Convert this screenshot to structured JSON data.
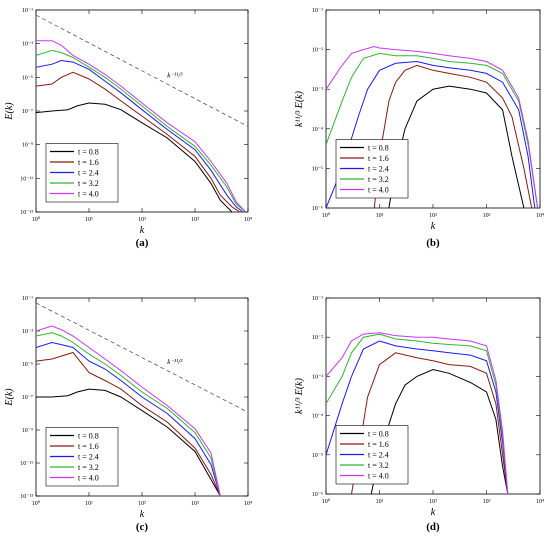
{
  "chart_data": [
    {
      "type": "line",
      "panel": "(a)",
      "xlabel": "k",
      "ylabel": "E(k)",
      "xscale": "log",
      "yscale": "log",
      "xlim": [
        1,
        10000
      ],
      "ylim": [
        1e-13,
        0.1
      ],
      "xticks": [
        {
          "v": 1,
          "label": "10⁰"
        },
        {
          "v": 10,
          "label": "10¹"
        },
        {
          "v": 100,
          "label": "10²"
        },
        {
          "v": 1000,
          "label": "10³"
        },
        {
          "v": 10000,
          "label": "10⁴"
        }
      ],
      "yticks": [
        {
          "v": 0.1,
          "label": "10⁻¹"
        },
        {
          "v": 0.001,
          "label": "10⁻³"
        },
        {
          "v": 1e-05,
          "label": "10⁻⁵"
        },
        {
          "v": 1e-07,
          "label": "10⁻⁷"
        },
        {
          "v": 1e-09,
          "label": "10⁻⁹"
        },
        {
          "v": 1e-11,
          "label": "10⁻¹¹"
        },
        {
          "v": 1e-13,
          "label": "10⁻¹³"
        }
      ],
      "legend_position": "lower-left",
      "annotation": {
        "text": "k⁻¹¹/³",
        "x": 300,
        "y": 1e-05
      },
      "reference_line": {
        "style": "dashed",
        "x": [
          1,
          10000
        ],
        "y": [
          0.05,
          1.2e-08
        ]
      },
      "series": [
        {
          "name": "t = 0.8",
          "color": "#000000",
          "x": [
            1,
            2,
            4,
            6,
            10,
            20,
            40,
            100,
            300,
            1000,
            2000,
            3000,
            5000
          ],
          "y": [
            8e-08,
            1e-07,
            1.2e-07,
            2e-07,
            3e-07,
            2.5e-07,
            1.2e-07,
            2e-08,
            2.5e-09,
            1e-10,
            5e-12,
            5e-13,
            1e-13
          ]
        },
        {
          "name": "t = 1.6",
          "color": "#8b1a0a",
          "x": [
            1,
            2,
            3,
            5,
            10,
            20,
            40,
            100,
            300,
            1000,
            2000,
            3000,
            5000,
            7000
          ],
          "y": [
            3e-06,
            4e-06,
            1e-05,
            2e-05,
            8e-06,
            2e-06,
            4e-07,
            5e-08,
            4e-09,
            2e-10,
            1e-11,
            1e-12,
            2e-13,
            1e-13
          ]
        },
        {
          "name": "t = 2.4",
          "color": "#1a1aff",
          "x": [
            1,
            2,
            3,
            5,
            10,
            20,
            40,
            100,
            300,
            1000,
            2000,
            4000,
            6000,
            8000
          ],
          "y": [
            4e-05,
            6e-05,
            0.0001,
            8e-05,
            3e-05,
            6e-06,
            1.2e-06,
            1.2e-07,
            8e-09,
            5e-10,
            3e-11,
            1e-12,
            2e-13,
            1e-13
          ]
        },
        {
          "name": "t = 3.2",
          "color": "#2db82d",
          "x": [
            1,
            2,
            3,
            5,
            10,
            20,
            40,
            100,
            300,
            1000,
            2000,
            4000,
            6000,
            9000
          ],
          "y": [
            0.0002,
            0.0004,
            0.0003,
            0.00015,
            4e-05,
            1e-05,
            2e-06,
            2e-07,
            1.2e-08,
            8e-10,
            6e-11,
            3e-12,
            3e-13,
            1e-13
          ]
        },
        {
          "name": "t = 4.0",
          "color": "#cc33ff",
          "x": [
            1,
            2,
            3,
            5,
            10,
            20,
            40,
            100,
            300,
            1000,
            2000,
            4000,
            6000,
            9000
          ],
          "y": [
            0.0015,
            0.0015,
            0.0008,
            0.0002,
            6e-05,
            1.5e-05,
            3e-06,
            3e-07,
            2e-08,
            1.5e-09,
            1e-10,
            5e-12,
            4e-13,
            1e-13
          ]
        }
      ]
    },
    {
      "type": "line",
      "panel": "(b)",
      "xlabel": "k",
      "ylabel": "k¹¹/³ E(k)",
      "xscale": "log",
      "yscale": "log",
      "xlim": [
        1,
        10000
      ],
      "ylim": [
        1e-06,
        0.1
      ],
      "xticks": [
        {
          "v": 1,
          "label": "10⁰"
        },
        {
          "v": 10,
          "label": "10¹"
        },
        {
          "v": 100,
          "label": "10²"
        },
        {
          "v": 1000,
          "label": "10³"
        },
        {
          "v": 10000,
          "label": "10⁴"
        }
      ],
      "yticks": [
        {
          "v": 0.1,
          "label": "10⁻¹"
        },
        {
          "v": 0.01,
          "label": "10⁻²"
        },
        {
          "v": 0.001,
          "label": "10⁻³"
        },
        {
          "v": 0.0001,
          "label": "10⁻⁴"
        },
        {
          "v": 1e-05,
          "label": "10⁻⁵"
        },
        {
          "v": 1e-06,
          "label": "10⁻⁶"
        }
      ],
      "legend_position": "lower-left",
      "series": [
        {
          "name": "t = 0.8",
          "color": "#000000",
          "x": [
            15,
            20,
            30,
            50,
            100,
            200,
            500,
            1000,
            2000,
            3000,
            5000
          ],
          "y": [
            1e-06,
            1e-05,
            0.0001,
            0.0005,
            0.001,
            0.0012,
            0.001,
            0.0008,
            0.0003,
            2e-05,
            1e-06
          ]
        },
        {
          "name": "t = 1.6",
          "color": "#8b1a0a",
          "x": [
            8,
            10,
            15,
            20,
            30,
            50,
            100,
            200,
            500,
            1000,
            2000,
            3000,
            5000,
            7000
          ],
          "y": [
            1e-06,
            2e-05,
            0.0005,
            0.0015,
            0.003,
            0.004,
            0.003,
            0.0025,
            0.002,
            0.0015,
            0.0006,
            0.0002,
            1e-05,
            1e-06
          ]
        },
        {
          "name": "t = 2.4",
          "color": "#1a1aff",
          "x": [
            1,
            2,
            4,
            6,
            10,
            20,
            50,
            100,
            200,
            500,
            1000,
            2000,
            4000,
            6000,
            8000
          ],
          "y": [
            1e-06,
            1e-05,
            0.0002,
            0.001,
            0.003,
            0.0045,
            0.005,
            0.004,
            0.0035,
            0.003,
            0.0025,
            0.0015,
            0.0003,
            2e-05,
            1e-06
          ]
        },
        {
          "name": "t = 3.2",
          "color": "#2db82d",
          "x": [
            1,
            2,
            3,
            5,
            10,
            20,
            50,
            100,
            200,
            500,
            1000,
            2000,
            4000,
            6000,
            9000
          ],
          "y": [
            4e-05,
            0.0005,
            0.002,
            0.006,
            0.008,
            0.007,
            0.007,
            0.006,
            0.005,
            0.0045,
            0.004,
            0.0025,
            0.0005,
            4e-05,
            1e-06
          ]
        },
        {
          "name": "t = 4.0",
          "color": "#cc33ff",
          "x": [
            1,
            2,
            3,
            5,
            8,
            10,
            20,
            50,
            100,
            200,
            500,
            1000,
            2000,
            4000,
            6000,
            9000
          ],
          "y": [
            0.001,
            0.004,
            0.008,
            0.01,
            0.012,
            0.011,
            0.01,
            0.009,
            0.008,
            0.007,
            0.006,
            0.005,
            0.003,
            0.0006,
            5e-05,
            1e-06
          ]
        }
      ]
    },
    {
      "type": "line",
      "panel": "(c)",
      "xlabel": "k",
      "ylabel": "E(k)",
      "xscale": "log",
      "yscale": "log",
      "xlim": [
        1,
        10000
      ],
      "ylim": [
        1e-13,
        0.1
      ],
      "xticks": [
        {
          "v": 1,
          "label": "10⁰"
        },
        {
          "v": 10,
          "label": "10¹"
        },
        {
          "v": 100,
          "label": "10²"
        },
        {
          "v": 1000,
          "label": "10³"
        },
        {
          "v": 10000,
          "label": "10⁴"
        }
      ],
      "yticks": [
        {
          "v": 0.1,
          "label": "10⁻¹"
        },
        {
          "v": 0.001,
          "label": "10⁻³"
        },
        {
          "v": 1e-05,
          "label": "10⁻⁵"
        },
        {
          "v": 1e-07,
          "label": "10⁻⁷"
        },
        {
          "v": 1e-09,
          "label": "10⁻⁹"
        },
        {
          "v": 1e-11,
          "label": "10⁻¹¹"
        },
        {
          "v": 1e-13,
          "label": "10⁻¹³"
        }
      ],
      "legend_position": "lower-left",
      "annotation": {
        "text": "k⁻¹¹/³",
        "x": 300,
        "y": 1e-05
      },
      "reference_line": {
        "style": "dashed",
        "x": [
          1,
          10000
        ],
        "y": [
          0.05,
          1.2e-08
        ]
      },
      "series": [
        {
          "name": "t = 0.8",
          "color": "#000000",
          "x": [
            1,
            2,
            4,
            6,
            10,
            20,
            40,
            100,
            300,
            1000,
            2000,
            3000
          ],
          "y": [
            1e-07,
            1e-07,
            1.2e-07,
            2e-07,
            3e-07,
            2.5e-07,
            1e-07,
            1.5e-08,
            1.5e-09,
            5e-11,
            1e-12,
            1e-13
          ]
        },
        {
          "name": "t = 1.6",
          "color": "#8b1a0a",
          "x": [
            1,
            2,
            3,
            5,
            10,
            20,
            40,
            100,
            300,
            1000,
            2000,
            3000
          ],
          "y": [
            1.5e-05,
            2e-05,
            3e-05,
            5e-05,
            3e-06,
            1e-06,
            3e-07,
            3e-08,
            3e-09,
            8e-11,
            2e-12,
            1e-13
          ]
        },
        {
          "name": "t = 2.4",
          "color": "#1a1aff",
          "x": [
            1,
            2,
            3,
            5,
            10,
            20,
            40,
            100,
            300,
            1000,
            2000,
            3000
          ],
          "y": [
            0.0001,
            0.0002,
            0.00015,
            0.0001,
            1.5e-05,
            5e-06,
            1e-06,
            1e-07,
            1e-08,
            3e-10,
            8e-12,
            1e-13
          ]
        },
        {
          "name": "t = 3.2",
          "color": "#2db82d",
          "x": [
            1,
            2,
            3,
            5,
            10,
            20,
            40,
            100,
            300,
            1000,
            2000,
            3000
          ],
          "y": [
            0.0005,
            0.0008,
            0.0005,
            0.0002,
            4e-05,
            1e-05,
            2e-06,
            2e-07,
            2e-08,
            7e-10,
            2e-11,
            1e-13
          ]
        },
        {
          "name": "t = 4.0",
          "color": "#cc33ff",
          "x": [
            1,
            2,
            3,
            5,
            10,
            20,
            40,
            100,
            300,
            1000,
            2000,
            3000
          ],
          "y": [
            0.001,
            0.002,
            0.0012,
            0.0005,
            0.0001,
            2e-05,
            4e-06,
            4e-07,
            3e-08,
            1.2e-09,
            4e-11,
            1e-13
          ]
        }
      ]
    },
    {
      "type": "line",
      "panel": "(d)",
      "xlabel": "k",
      "ylabel": "k¹¹/³ E(k)",
      "xscale": "log",
      "yscale": "log",
      "xlim": [
        1,
        10000
      ],
      "ylim": [
        1e-06,
        0.1
      ],
      "xticks": [
        {
          "v": 1,
          "label": "10⁰"
        },
        {
          "v": 10,
          "label": "10¹"
        },
        {
          "v": 100,
          "label": "10²"
        },
        {
          "v": 1000,
          "label": "10³"
        },
        {
          "v": 10000,
          "label": "10⁴"
        }
      ],
      "yticks": [
        {
          "v": 0.1,
          "label": "10⁻¹"
        },
        {
          "v": 0.01,
          "label": "10⁻²"
        },
        {
          "v": 0.001,
          "label": "10⁻³"
        },
        {
          "v": 0.0001,
          "label": "10⁻⁴"
        },
        {
          "v": 1e-05,
          "label": "10⁻⁵"
        },
        {
          "v": 1e-06,
          "label": "10⁻⁶"
        }
      ],
      "legend_position": "lower-left",
      "series": [
        {
          "name": "t = 0.8",
          "color": "#000000",
          "x": [
            7,
            10,
            15,
            20,
            30,
            50,
            100,
            200,
            500,
            1000,
            1500,
            2000,
            2500
          ],
          "y": [
            1e-06,
            1e-05,
            6e-05,
            0.0002,
            0.0006,
            0.001,
            0.0015,
            0.0012,
            0.0007,
            0.0004,
            8e-05,
            5e-06,
            1e-06
          ]
        },
        {
          "name": "t = 1.6",
          "color": "#8b1a0a",
          "x": [
            3,
            4,
            6,
            10,
            20,
            50,
            100,
            200,
            500,
            1000,
            1500,
            2000,
            2500
          ],
          "y": [
            1e-06,
            1e-05,
            0.0003,
            0.002,
            0.004,
            0.003,
            0.0025,
            0.002,
            0.0018,
            0.0012,
            0.0002,
            1e-05,
            1e-06
          ]
        },
        {
          "name": "t = 2.4",
          "color": "#1a1aff",
          "x": [
            1,
            2,
            3,
            5,
            10,
            20,
            50,
            100,
            200,
            500,
            1000,
            1500,
            2000,
            2500
          ],
          "y": [
            1e-05,
            0.0002,
            0.001,
            0.005,
            0.008,
            0.006,
            0.005,
            0.0045,
            0.004,
            0.0035,
            0.0025,
            0.0004,
            2e-05,
            1e-06
          ]
        },
        {
          "name": "t = 3.2",
          "color": "#2db82d",
          "x": [
            1,
            2,
            3,
            5,
            10,
            20,
            50,
            100,
            200,
            500,
            1000,
            1500,
            2000,
            2500
          ],
          "y": [
            0.0002,
            0.001,
            0.004,
            0.01,
            0.012,
            0.009,
            0.008,
            0.007,
            0.0065,
            0.006,
            0.0045,
            0.0006,
            3e-05,
            1e-06
          ]
        },
        {
          "name": "t = 4.0",
          "color": "#cc33ff",
          "x": [
            1,
            2,
            3,
            5,
            10,
            20,
            50,
            100,
            200,
            500,
            1000,
            1500,
            2000,
            2500
          ],
          "y": [
            0.001,
            0.003,
            0.008,
            0.012,
            0.013,
            0.011,
            0.01,
            0.01,
            0.009,
            0.008,
            0.006,
            0.0008,
            4e-05,
            1e-06
          ]
        }
      ]
    }
  ],
  "captions": [
    "(a)",
    "(b)",
    "(c)",
    "(d)"
  ]
}
